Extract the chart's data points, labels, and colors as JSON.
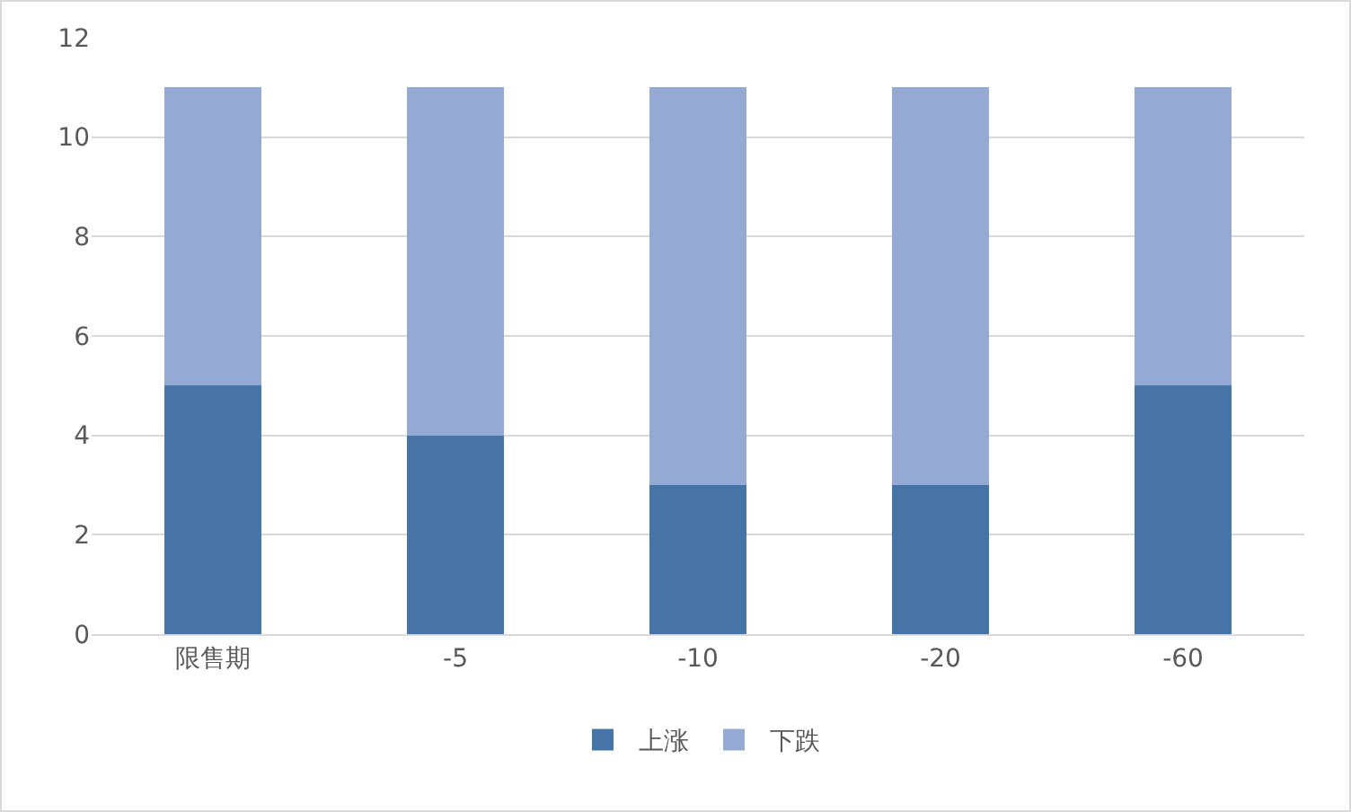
{
  "chart_data": {
    "type": "bar",
    "stacked": true,
    "categories": [
      "限售期",
      "-5",
      "-10",
      "-20",
      "-60"
    ],
    "series": [
      {
        "name": "上涨",
        "color": "#4673a8",
        "values": [
          5,
          4,
          3,
          3,
          5
        ]
      },
      {
        "name": "下跌",
        "color": "#95aad2",
        "values": [
          6,
          7,
          8,
          8,
          6
        ]
      }
    ],
    "ylim": [
      0,
      12
    ],
    "yticks": [
      0,
      2,
      4,
      6,
      8,
      10,
      12
    ],
    "grid": "y",
    "legend": "bottom"
  }
}
